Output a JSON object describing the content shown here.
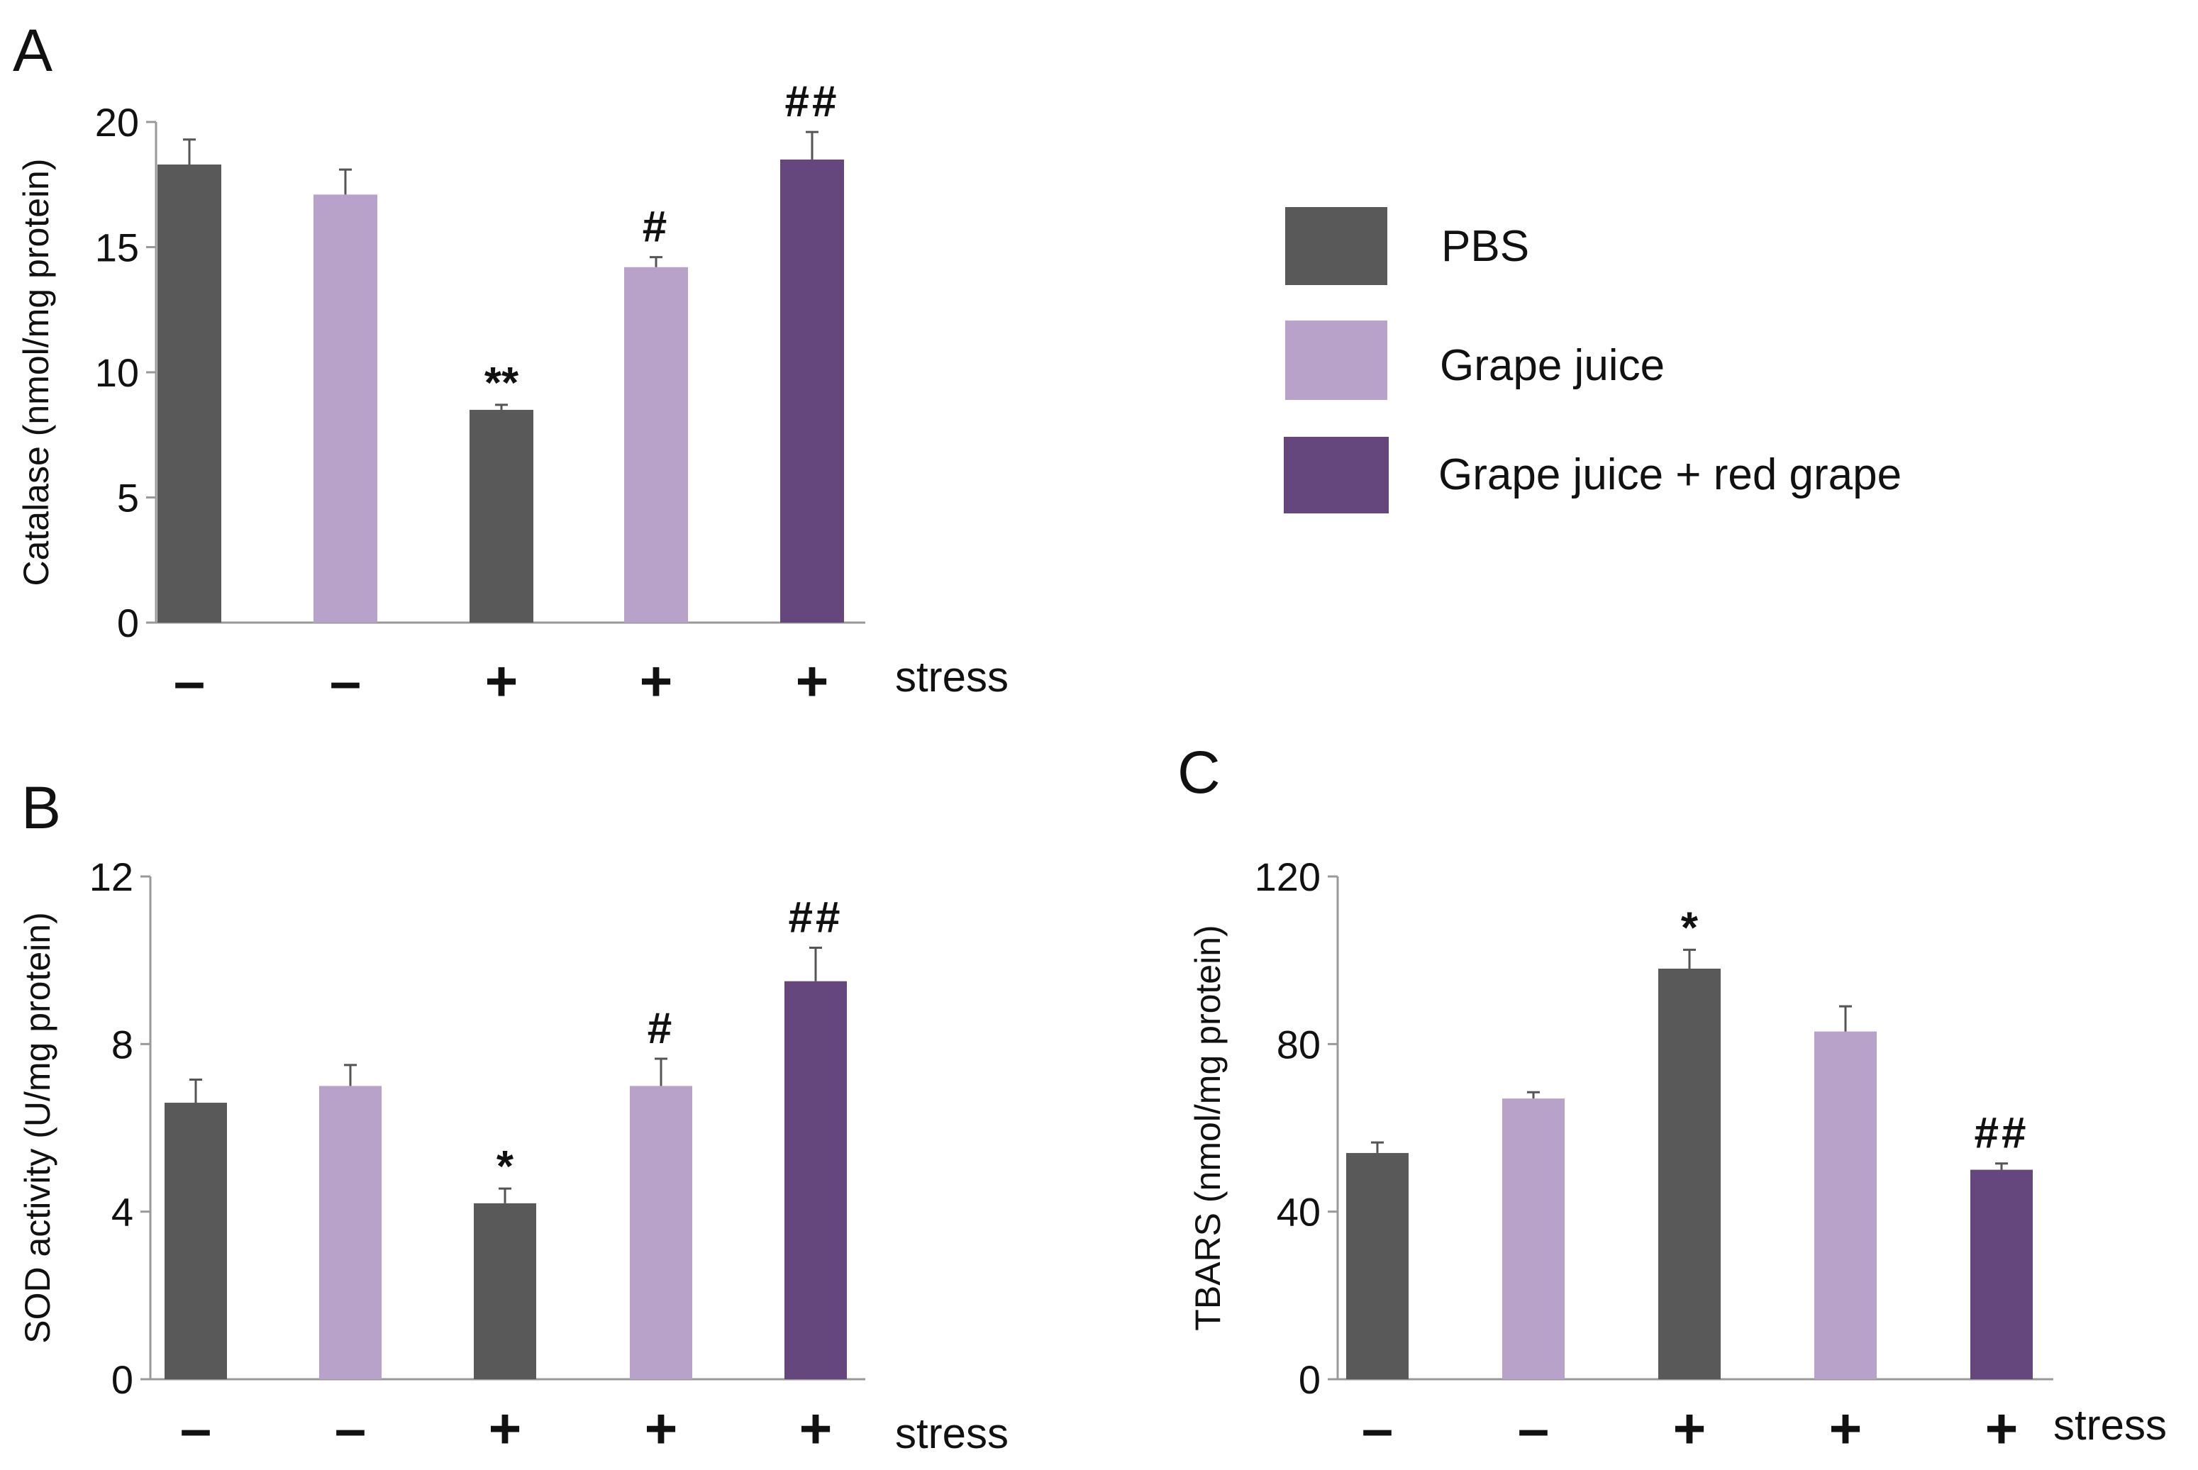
{
  "colors": {
    "PBS": "#595959",
    "Grape juice": "#b8a2c9",
    "Grape juice + red grape": "#65467d",
    "axis": "#999999",
    "text": "#111111"
  },
  "legend": {
    "items": [
      {
        "label": "PBS",
        "color": "#595959"
      },
      {
        "label": "Grape juice",
        "color": "#b8a2c9"
      },
      {
        "label": "Grape juice + red grape",
        "color": "#65467d"
      }
    ]
  },
  "chart_data": [
    {
      "panel": "A",
      "type": "bar",
      "ylabel": "Catalase  (nmol/mg protein)",
      "ylim": [
        0,
        20
      ],
      "yticks": [
        "0",
        "5",
        "10",
        "15",
        "20"
      ],
      "stress_label": "stress",
      "categories": [
        "–",
        "–",
        "+",
        "+",
        "+"
      ],
      "groups": [
        "PBS",
        "Grape juice",
        "PBS",
        "Grape juice",
        "Grape juice + red grape"
      ],
      "values": [
        18.3,
        17.1,
        8.5,
        14.2,
        18.5
      ],
      "errors": [
        1.0,
        1.0,
        0.2,
        0.4,
        1.1
      ],
      "significance": [
        "",
        "",
        "**",
        "#",
        "##"
      ]
    },
    {
      "panel": "B",
      "type": "bar",
      "ylabel": "SOD activity (U/mg protein)",
      "ylim": [
        0,
        12
      ],
      "yticks": [
        "0",
        "4",
        "8",
        "12"
      ],
      "stress_label": "stress",
      "categories": [
        "–",
        "–",
        "+",
        "+",
        "+"
      ],
      "groups": [
        "PBS",
        "Grape juice",
        "PBS",
        "Grape juice",
        "Grape juice + red grape"
      ],
      "values": [
        6.6,
        7.0,
        4.2,
        7.0,
        9.5
      ],
      "errors": [
        0.55,
        0.5,
        0.35,
        0.65,
        0.8
      ],
      "significance": [
        "",
        "",
        "*",
        "#",
        "##"
      ]
    },
    {
      "panel": "C",
      "type": "bar",
      "ylabel": "TBARS (nmol/mg protein)",
      "ylim": [
        0,
        120
      ],
      "yticks": [
        "0",
        "40",
        "80",
        "120"
      ],
      "stress_label": "stress",
      "categories": [
        "–",
        "–",
        "+",
        "+",
        "+"
      ],
      "groups": [
        "PBS",
        "Grape juice",
        "PBS",
        "Grape juice",
        "Grape juice + red grape"
      ],
      "values": [
        54,
        67,
        98,
        83,
        50
      ],
      "errors": [
        2.5,
        1.5,
        4.5,
        6.0,
        1.5
      ],
      "significance": [
        "",
        "",
        "*",
        "",
        "##"
      ]
    }
  ]
}
